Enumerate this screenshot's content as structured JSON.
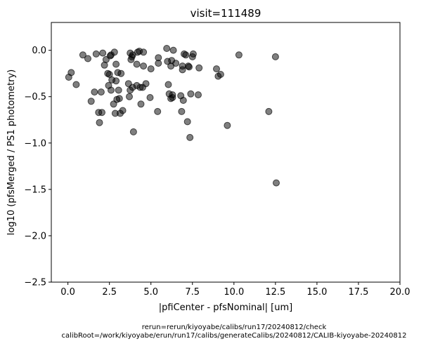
{
  "chart_data": {
    "type": "scatter",
    "title": "visit=111489",
    "xlabel": "|pfiCenter - pfsNominal| [um]",
    "ylabel": "log10 (pfsMerged / PS1 photometry)",
    "xlim": [
      -1.0,
      20.0
    ],
    "ylim": [
      -2.5,
      0.3
    ],
    "xticks": [
      0.0,
      2.5,
      5.0,
      7.5,
      10.0,
      12.5,
      15.0,
      17.5,
      20.0
    ],
    "xtick_labels": [
      "0.0",
      "2.5",
      "5.0",
      "7.5",
      "10.0",
      "12.5",
      "15.0",
      "17.5",
      "20.0"
    ],
    "yticks": [
      0.0,
      -0.5,
      -1.0,
      -1.5,
      -2.0,
      -2.5
    ],
    "ytick_labels": [
      "0.0",
      "−0.5",
      "−1.0",
      "−1.5",
      "−2.0",
      "−2.5"
    ],
    "grid": false,
    "marker_color": "#000000",
    "marker_alpha": 0.5,
    "footer_lines": [
      "rerun=rerun/kiyoyabe/calibs/run17/20240812/check",
      "calibRoot=/work/kiyoyabe/erun/run17/calibs/generateCalibs/20240812/CALIB-kiyoyabe-20240812"
    ],
    "points": [
      {
        "x": 0.05,
        "y": -0.29
      },
      {
        "x": 0.2,
        "y": -0.24
      },
      {
        "x": 0.5,
        "y": -0.37
      },
      {
        "x": 0.9,
        "y": -0.05
      },
      {
        "x": 1.2,
        "y": -0.09
      },
      {
        "x": 1.4,
        "y": -0.55
      },
      {
        "x": 1.6,
        "y": -0.45
      },
      {
        "x": 1.7,
        "y": -0.04
      },
      {
        "x": 1.85,
        "y": -0.67
      },
      {
        "x": 1.9,
        "y": -0.78
      },
      {
        "x": 2.0,
        "y": -0.45
      },
      {
        "x": 2.05,
        "y": -0.67
      },
      {
        "x": 2.1,
        "y": -0.03
      },
      {
        "x": 2.2,
        "y": -0.16
      },
      {
        "x": 2.3,
        "y": -0.1
      },
      {
        "x": 2.4,
        "y": -0.25
      },
      {
        "x": 2.45,
        "y": -0.38
      },
      {
        "x": 2.5,
        "y": -0.26
      },
      {
        "x": 2.55,
        "y": -0.06
      },
      {
        "x": 2.6,
        "y": -0.05
      },
      {
        "x": 2.6,
        "y": -0.43
      },
      {
        "x": 2.65,
        "y": -0.32
      },
      {
        "x": 2.75,
        "y": -0.58
      },
      {
        "x": 2.8,
        "y": -0.02
      },
      {
        "x": 2.85,
        "y": -0.68
      },
      {
        "x": 2.9,
        "y": -0.15
      },
      {
        "x": 2.9,
        "y": -0.33
      },
      {
        "x": 2.95,
        "y": -0.53
      },
      {
        "x": 3.0,
        "y": -0.24
      },
      {
        "x": 3.05,
        "y": -0.43
      },
      {
        "x": 3.1,
        "y": -0.52
      },
      {
        "x": 3.15,
        "y": -0.68
      },
      {
        "x": 3.2,
        "y": -0.25
      },
      {
        "x": 3.3,
        "y": -0.65
      },
      {
        "x": 3.65,
        "y": -0.36
      },
      {
        "x": 3.7,
        "y": -0.5
      },
      {
        "x": 3.75,
        "y": -0.03
      },
      {
        "x": 3.75,
        "y": -0.43
      },
      {
        "x": 3.8,
        "y": -0.1
      },
      {
        "x": 3.85,
        "y": -0.07
      },
      {
        "x": 3.9,
        "y": -0.05
      },
      {
        "x": 3.9,
        "y": -0.4
      },
      {
        "x": 3.95,
        "y": -0.88
      },
      {
        "x": 4.15,
        "y": -0.38
      },
      {
        "x": 4.15,
        "y": -0.15
      },
      {
        "x": 4.2,
        "y": -0.02
      },
      {
        "x": 4.3,
        "y": -0.01
      },
      {
        "x": 4.35,
        "y": -0.4
      },
      {
        "x": 4.4,
        "y": -0.58
      },
      {
        "x": 4.5,
        "y": -0.4
      },
      {
        "x": 4.55,
        "y": -0.02
      },
      {
        "x": 4.55,
        "y": -0.17
      },
      {
        "x": 4.7,
        "y": -0.36
      },
      {
        "x": 4.95,
        "y": -0.51
      },
      {
        "x": 5.0,
        "y": -0.2
      },
      {
        "x": 5.4,
        "y": -0.66
      },
      {
        "x": 5.45,
        "y": -0.08
      },
      {
        "x": 5.45,
        "y": -0.14
      },
      {
        "x": 5.95,
        "y": 0.02
      },
      {
        "x": 6.0,
        "y": -0.12
      },
      {
        "x": 6.05,
        "y": -0.37
      },
      {
        "x": 6.1,
        "y": -0.47
      },
      {
        "x": 6.2,
        "y": -0.17
      },
      {
        "x": 6.2,
        "y": -0.52
      },
      {
        "x": 6.25,
        "y": -0.11
      },
      {
        "x": 6.3,
        "y": -0.48
      },
      {
        "x": 6.3,
        "y": -0.51
      },
      {
        "x": 6.35,
        "y": 0.0
      },
      {
        "x": 6.5,
        "y": -0.14
      },
      {
        "x": 6.8,
        "y": -0.49
      },
      {
        "x": 6.85,
        "y": -0.66
      },
      {
        "x": 6.9,
        "y": -0.17
      },
      {
        "x": 6.9,
        "y": -0.21
      },
      {
        "x": 6.95,
        "y": -0.54
      },
      {
        "x": 7.0,
        "y": -0.04
      },
      {
        "x": 7.1,
        "y": -0.05
      },
      {
        "x": 7.2,
        "y": -0.77
      },
      {
        "x": 7.25,
        "y": -0.17
      },
      {
        "x": 7.3,
        "y": -0.18
      },
      {
        "x": 7.35,
        "y": -0.94
      },
      {
        "x": 7.4,
        "y": -0.47
      },
      {
        "x": 7.5,
        "y": -0.07
      },
      {
        "x": 7.55,
        "y": -0.04
      },
      {
        "x": 7.85,
        "y": -0.48
      },
      {
        "x": 7.9,
        "y": -0.19
      },
      {
        "x": 8.95,
        "y": -0.2
      },
      {
        "x": 9.05,
        "y": -0.28
      },
      {
        "x": 9.2,
        "y": -0.26
      },
      {
        "x": 9.6,
        "y": -0.81
      },
      {
        "x": 10.3,
        "y": -0.05
      },
      {
        "x": 12.1,
        "y": -0.66
      },
      {
        "x": 12.5,
        "y": -0.07
      },
      {
        "x": 12.55,
        "y": -1.43
      }
    ]
  }
}
